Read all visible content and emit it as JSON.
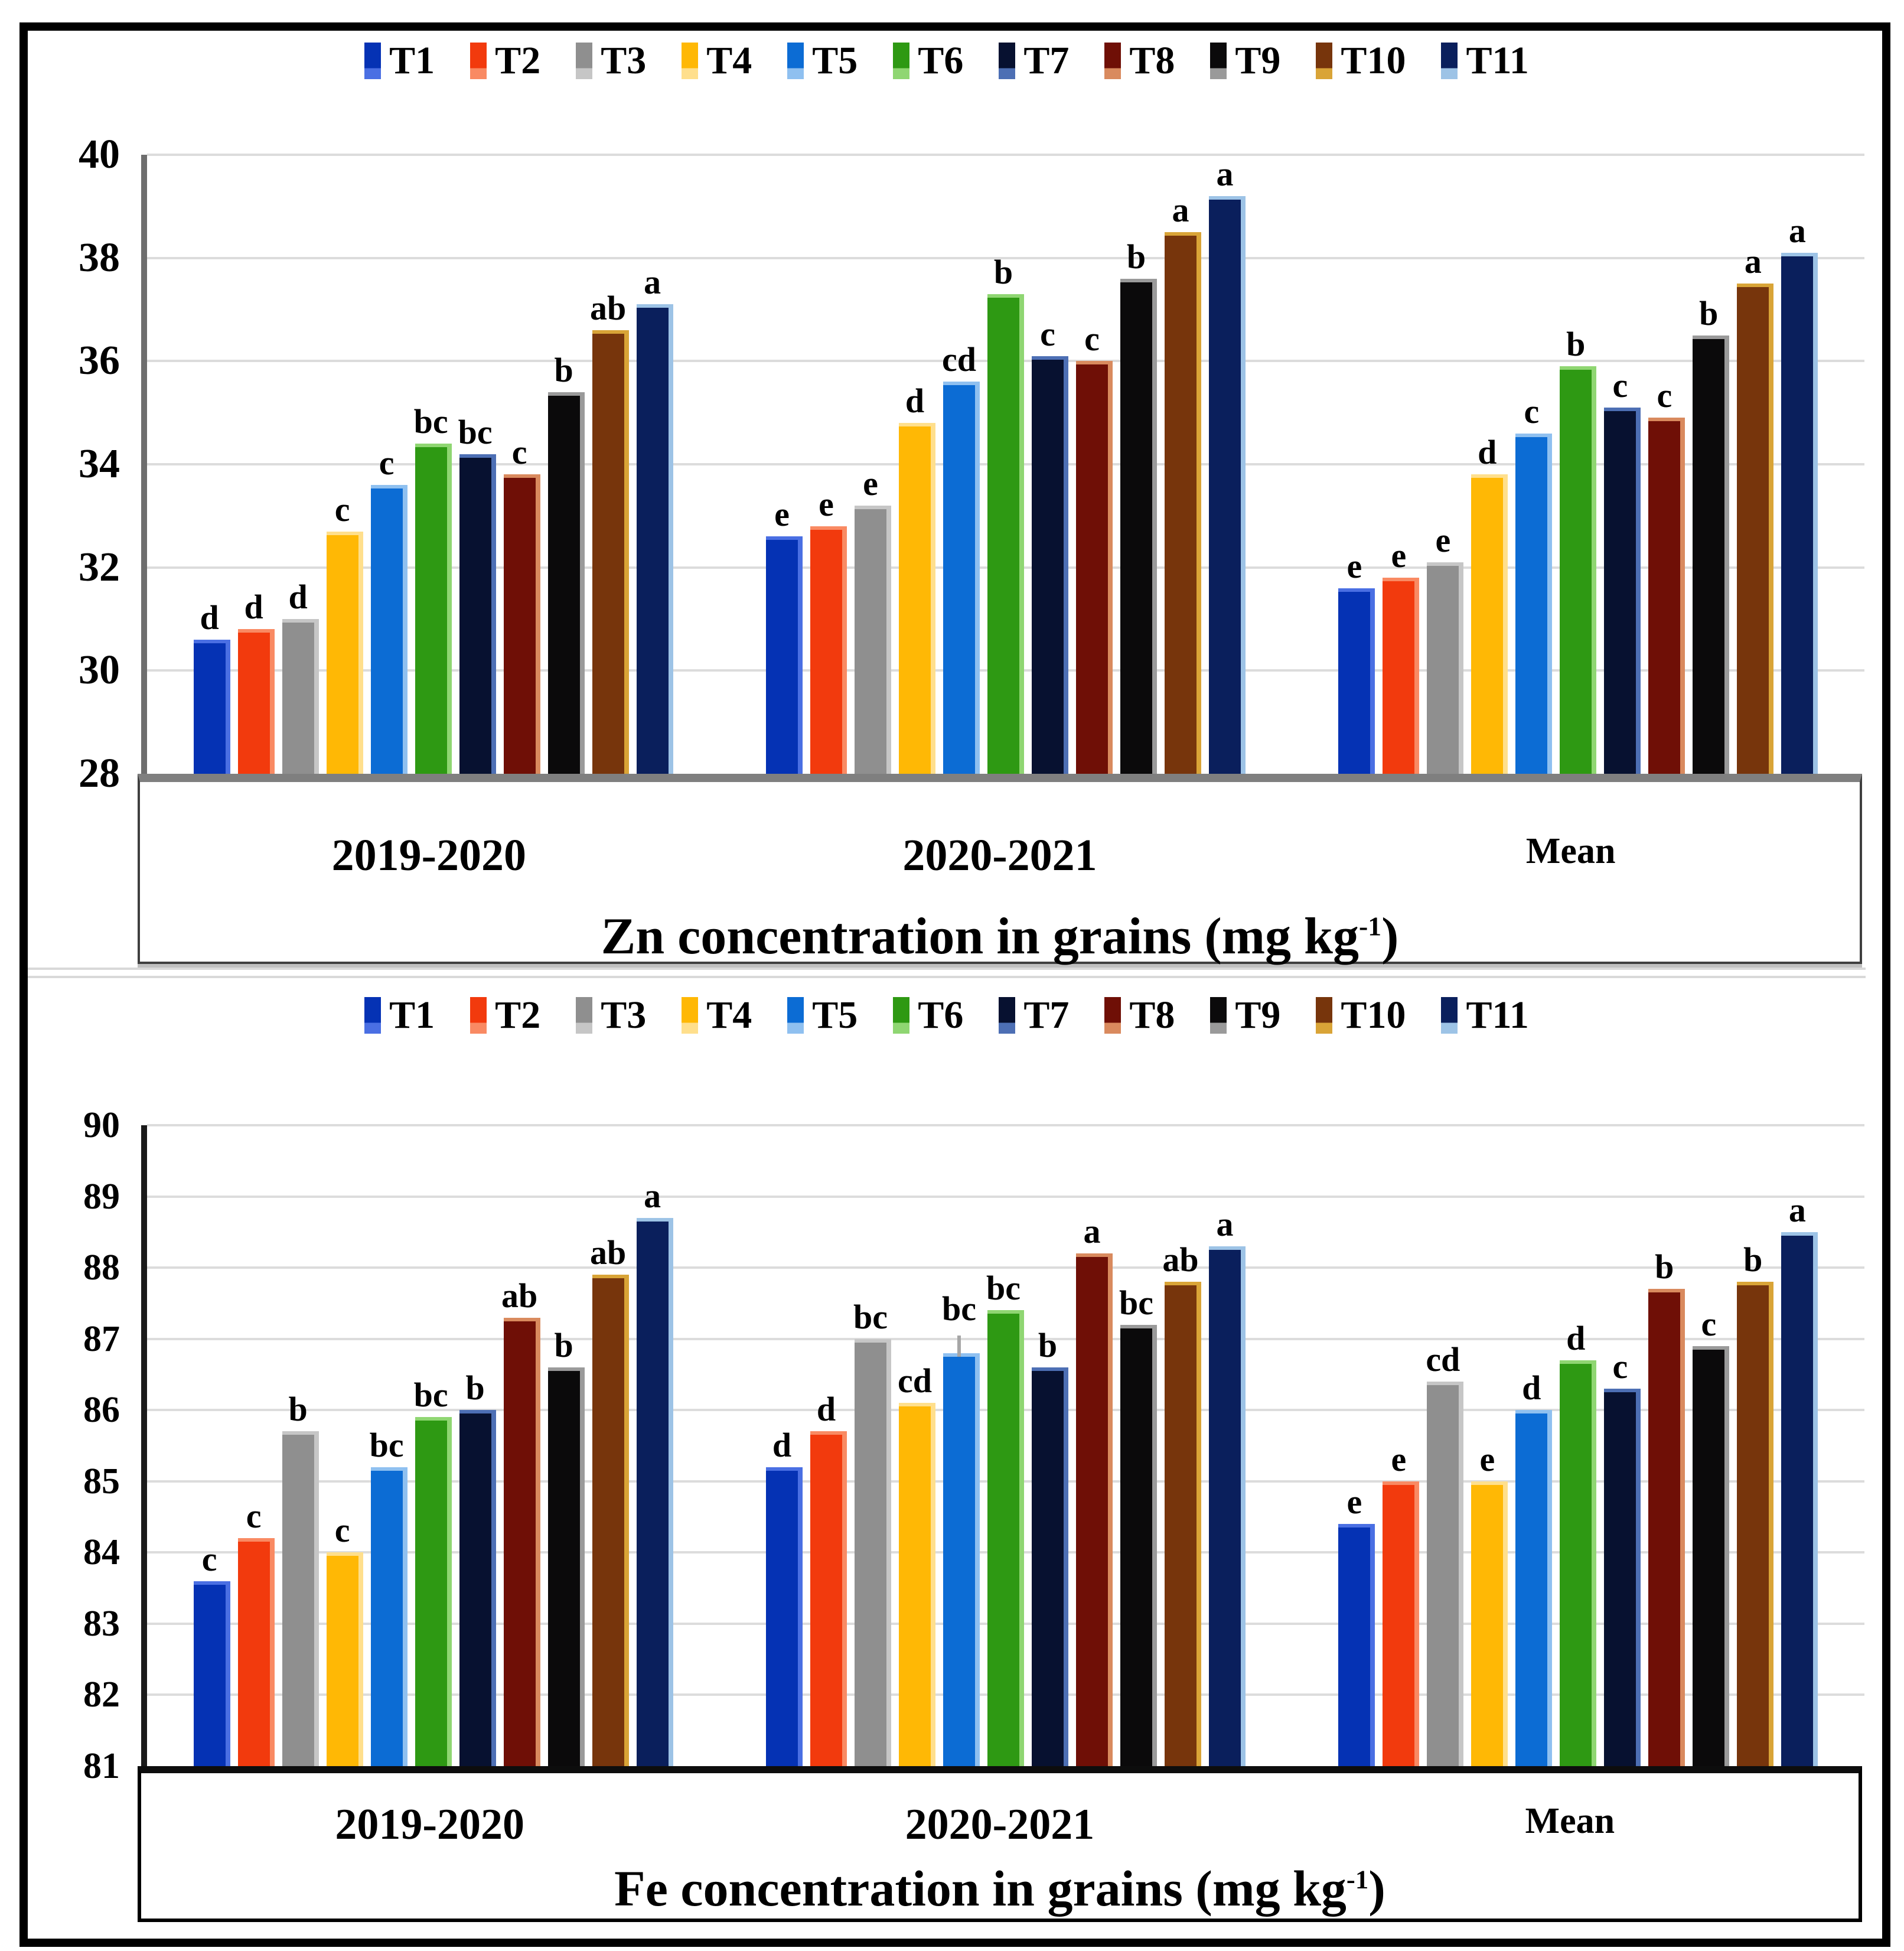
{
  "chart_data": [
    {
      "type": "bar",
      "title": "Zn concentration in grains (mg kg-1)",
      "title_parts": {
        "prefix": "Zn concentration in grains (mg kg",
        "sup": "-1",
        "suffix": ")"
      },
      "categories": [
        "2019-2020",
        "2020-2021",
        "Mean"
      ],
      "ylim": [
        28,
        40
      ],
      "yticks": [
        28,
        30,
        32,
        34,
        36,
        38,
        40
      ],
      "grid": true,
      "legend_position": "top",
      "legend_labels": [
        "T1",
        "T2",
        "T3",
        "T4",
        "T5",
        "T6",
        "T7",
        "T8",
        "T9",
        "T10",
        "T11"
      ],
      "series": [
        {
          "name": "T1",
          "color": "#0532B4",
          "edge": "#4A6FE3",
          "values": [
            30.6,
            32.6,
            31.6
          ],
          "letters": [
            "d",
            "e",
            "e"
          ]
        },
        {
          "name": "T2",
          "color": "#F23A0D",
          "edge": "#F98A63",
          "values": [
            30.8,
            32.8,
            31.8
          ],
          "letters": [
            "d",
            "e",
            "e"
          ]
        },
        {
          "name": "T3",
          "color": "#8F8F8F",
          "edge": "#C6C6C6",
          "values": [
            31.0,
            33.2,
            32.1
          ],
          "letters": [
            "d",
            "e",
            "e"
          ]
        },
        {
          "name": "T4",
          "color": "#FFB805",
          "edge": "#FFDF8C",
          "values": [
            32.7,
            34.8,
            33.8
          ],
          "letters": [
            "c",
            "d",
            "d"
          ]
        },
        {
          "name": "T5",
          "color": "#0C6CD4",
          "edge": "#8FC0F0",
          "values": [
            33.6,
            35.6,
            34.6
          ],
          "letters": [
            "c",
            "cd",
            "c"
          ]
        },
        {
          "name": "T6",
          "color": "#2E9913",
          "edge": "#8FD672",
          "values": [
            34.4,
            37.3,
            35.9
          ],
          "letters": [
            "bc",
            "b",
            "b"
          ]
        },
        {
          "name": "T7",
          "color": "#071130",
          "edge": "#4D6FB4",
          "values": [
            34.2,
            36.1,
            35.1
          ],
          "letters": [
            "bc",
            "c",
            "c"
          ]
        },
        {
          "name": "T8",
          "color": "#6F0F06",
          "edge": "#D98A5E",
          "values": [
            33.8,
            36.0,
            34.9
          ],
          "letters": [
            "c",
            "c",
            "c"
          ]
        },
        {
          "name": "T9",
          "color": "#0B0A0B",
          "edge": "#9A9A9A",
          "values": [
            35.4,
            37.6,
            36.5
          ],
          "letters": [
            "b",
            "b",
            "b"
          ]
        },
        {
          "name": "T10",
          "color": "#77350C",
          "edge": "#D9A437",
          "values": [
            36.6,
            38.5,
            37.5
          ],
          "letters": [
            "ab",
            "a",
            "a"
          ]
        },
        {
          "name": "T11",
          "color": "#0A1F5C",
          "edge": "#9DC3E6",
          "values": [
            37.1,
            39.2,
            38.1
          ],
          "letters": [
            "a",
            "a",
            "a"
          ]
        }
      ],
      "error_bars": []
    },
    {
      "type": "bar",
      "title": "Fe concentration in grains (mg kg-1)",
      "title_parts": {
        "prefix": "Fe concentration in grains (mg kg",
        "sup": "-1",
        "suffix": ")"
      },
      "categories": [
        "2019-2020",
        "2020-2021",
        "Mean"
      ],
      "ylim": [
        81,
        90
      ],
      "yticks": [
        81,
        82,
        83,
        84,
        85,
        86,
        87,
        88,
        89,
        90
      ],
      "grid": true,
      "legend_position": "top",
      "legend_labels": [
        "T1",
        "T2",
        "T3",
        "T4",
        "T5",
        "T6",
        "T7",
        "T8",
        "T9",
        "T10",
        "T11"
      ],
      "series": [
        {
          "name": "T1",
          "color": "#0532B4",
          "edge": "#4A6FE3",
          "values": [
            83.6,
            85.2,
            84.4
          ],
          "letters": [
            "c",
            "d",
            "e"
          ]
        },
        {
          "name": "T2",
          "color": "#F23A0D",
          "edge": "#F98A63",
          "values": [
            84.2,
            85.7,
            85.0
          ],
          "letters": [
            "c",
            "d",
            "e"
          ]
        },
        {
          "name": "T3",
          "color": "#8F8F8F",
          "edge": "#C6C6C6",
          "values": [
            85.7,
            87.0,
            86.4
          ],
          "letters": [
            "b",
            "bc",
            "cd"
          ]
        },
        {
          "name": "T4",
          "color": "#FFB805",
          "edge": "#FFDF8C",
          "values": [
            84.0,
            86.1,
            85.0
          ],
          "letters": [
            "c",
            "cd",
            "e"
          ]
        },
        {
          "name": "T5",
          "color": "#0C6CD4",
          "edge": "#8FC0F0",
          "values": [
            85.2,
            86.8,
            86.0
          ],
          "letters": [
            "bc",
            "bc",
            "d"
          ]
        },
        {
          "name": "T6",
          "color": "#2E9913",
          "edge": "#8FD672",
          "values": [
            85.9,
            87.4,
            86.7
          ],
          "letters": [
            "bc",
            "bc",
            "d"
          ]
        },
        {
          "name": "T7",
          "color": "#071130",
          "edge": "#4D6FB4",
          "values": [
            86.0,
            86.6,
            86.3
          ],
          "letters": [
            "b",
            "b",
            "c"
          ]
        },
        {
          "name": "T8",
          "color": "#6F0F06",
          "edge": "#D98A5E",
          "values": [
            87.3,
            88.2,
            87.7
          ],
          "letters": [
            "ab",
            "a",
            "b"
          ]
        },
        {
          "name": "T9",
          "color": "#0B0A0B",
          "edge": "#9A9A9A",
          "values": [
            86.6,
            87.2,
            86.9
          ],
          "letters": [
            "b",
            "bc",
            "c"
          ]
        },
        {
          "name": "T10",
          "color": "#77350C",
          "edge": "#D9A437",
          "values": [
            87.9,
            87.8,
            87.8
          ],
          "letters": [
            "ab",
            "ab",
            "b"
          ]
        },
        {
          "name": "T11",
          "color": "#0A1F5C",
          "edge": "#9DC3E6",
          "values": [
            88.7,
            88.3,
            88.5
          ],
          "letters": [
            "a",
            "a",
            "a"
          ]
        }
      ],
      "error_bars": [
        {
          "series": "T5",
          "category": "2020-2021"
        }
      ]
    }
  ]
}
